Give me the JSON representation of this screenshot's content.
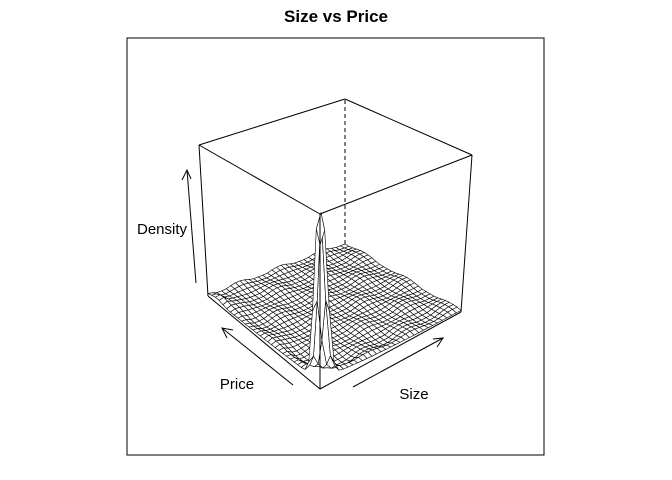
{
  "chart_data": {
    "type": "surface",
    "title": "Size vs Price",
    "xlabel": "Size",
    "ylabel": "Price",
    "zlabel": "Density",
    "box": true,
    "ticks": false,
    "surface": {
      "x_range": [
        0,
        1
      ],
      "y_range": [
        0,
        1
      ],
      "z_range": [
        0,
        1
      ],
      "peak": {
        "x": 0.02,
        "y": 0.02,
        "z": 1.0
      },
      "ridge_along_size_edge": true,
      "ridge_along_price_edge": true
    }
  }
}
